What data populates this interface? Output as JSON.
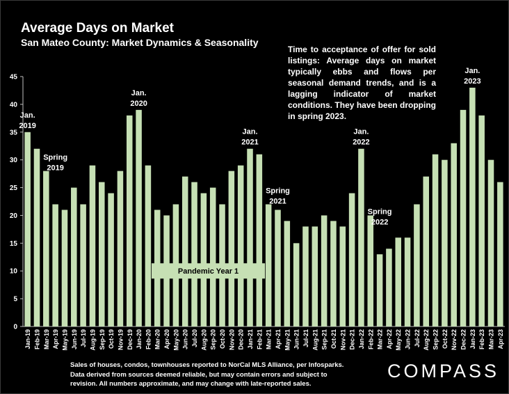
{
  "header": {
    "title": "Average Days on Market",
    "subtitle": "San Mateo County: Market Dynamics & Seasonality"
  },
  "note": "Time to acceptance of offer for sold listings: Average days on market typically ebbs and flows per seasonal demand trends, and is a lagging indicator of market conditions. They have been dropping in spring 2023.",
  "footer": {
    "source_text": "Sales of houses, condos, townhouses reported to NorCal MLS Alliance, per Infosparks. Data derived from sources deemed reliable, but may contain errors and subject to revision. All numbers approximate, and may change with late-reported sales.",
    "logo": "COMPASS"
  },
  "colors": {
    "bar": "#c6e0b4",
    "background": "#000000",
    "text": "#ffffff"
  },
  "chart_data": {
    "type": "bar",
    "categories": [
      "Jan-19",
      "Feb-19",
      "Mar-19",
      "Apr-19",
      "May-19",
      "Jun-19",
      "Jul-19",
      "Aug-19",
      "Sep-19",
      "Oct-19",
      "Nov-19",
      "Dec-19",
      "Jan-20",
      "Feb-20",
      "Mar-20",
      "Apr-20",
      "May-20",
      "Jun-20",
      "Jul-20",
      "Aug-20",
      "Sep-20",
      "Oct-20",
      "Nov-20",
      "Dec-20",
      "Jan-21",
      "Feb-21",
      "Mar-21",
      "Apr-21",
      "May-21",
      "Jun-21",
      "Jul-21",
      "Aug-21",
      "Sep-21",
      "Oct-21",
      "Nov-21",
      "Dec-21",
      "Jan-22",
      "Feb-22",
      "Mar-22",
      "Apr-22",
      "May-22",
      "Jun-22",
      "Jul-22",
      "Aug-22",
      "Sep-22",
      "Oct-22",
      "Nov-22",
      "Dec-22",
      "Jan-23",
      "Feb-23",
      "Mar-23",
      "Apr-23"
    ],
    "values": [
      35,
      32,
      28,
      22,
      21,
      25,
      22,
      29,
      26,
      24,
      28,
      38,
      39,
      29,
      21,
      20,
      22,
      27,
      26,
      24,
      25,
      22,
      28,
      29,
      32,
      31,
      22,
      21,
      19,
      15,
      18,
      18,
      20,
      19,
      18,
      24,
      32,
      20,
      13,
      14,
      16,
      16,
      22,
      27,
      31,
      30,
      33,
      39,
      43,
      38,
      30,
      26
    ],
    "ylim": [
      0,
      45
    ],
    "yticks": [
      0,
      5,
      10,
      15,
      20,
      25,
      30,
      35,
      40,
      45
    ],
    "grid": false,
    "annotations": [
      {
        "lines": [
          "Jan.",
          "2019"
        ],
        "index": 0,
        "value": 35
      },
      {
        "lines": [
          "Spring",
          "2019"
        ],
        "index": 3,
        "value": 27.4
      },
      {
        "lines": [
          "Jan.",
          "2020"
        ],
        "index": 12,
        "value": 39
      },
      {
        "lines": [
          "Jan.",
          "2021"
        ],
        "index": 24,
        "value": 32
      },
      {
        "lines": [
          "Spring",
          "2021"
        ],
        "index": 27,
        "value": 21.4
      },
      {
        "lines": [
          "Jan.",
          "2022"
        ],
        "index": 36,
        "value": 32
      },
      {
        "lines": [
          "Spring",
          "2022"
        ],
        "index": 38,
        "value": 17.6
      },
      {
        "lines": [
          "Jan.",
          "2023"
        ],
        "index": 48,
        "value": 43
      }
    ],
    "period_label": {
      "text": "Pandemic Year 1",
      "from_index": 14,
      "to_index": 25,
      "value": 10
    }
  }
}
